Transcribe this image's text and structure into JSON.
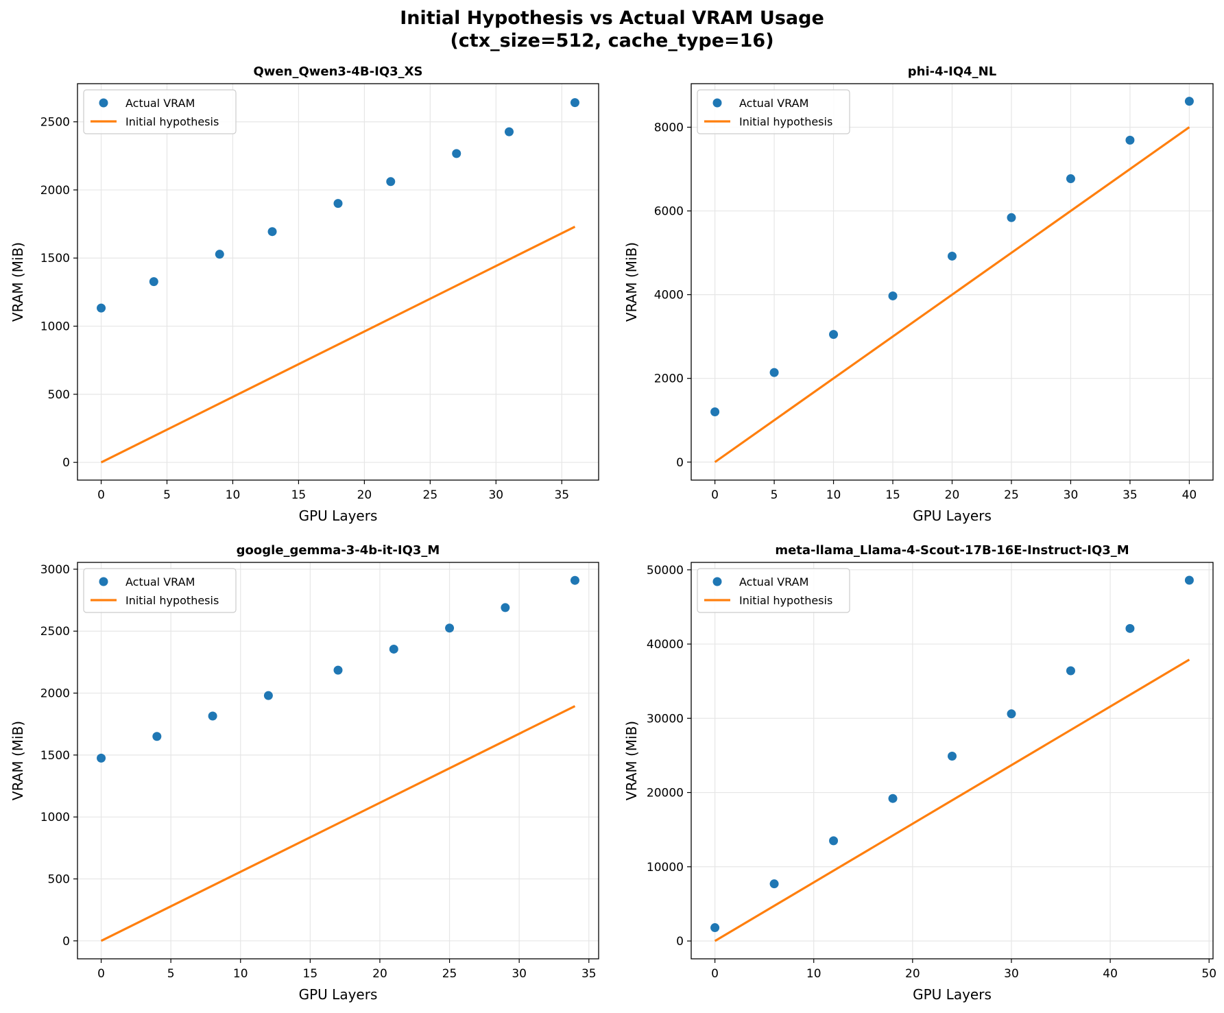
{
  "figure": {
    "title_line1": "Initial Hypothesis vs Actual VRAM Usage",
    "title_line2": "(ctx_size=512, cache_type=16)"
  },
  "colors": {
    "actual": "#1f77b4",
    "hypothesis": "#ff7f0e",
    "grid": "#e6e6e6",
    "axes": "#000000"
  },
  "chart_data": [
    {
      "type": "scatter",
      "title": "Qwen_Qwen3-4B-IQ3_XS",
      "xlabel": "GPU Layers",
      "ylabel": "VRAM (MiB)",
      "xlim": [
        -1.8,
        37.8
      ],
      "ylim": [
        -130,
        2780
      ],
      "xticks": [
        0,
        5,
        10,
        15,
        20,
        25,
        30,
        35
      ],
      "yticks": [
        0,
        500,
        1000,
        1500,
        2000,
        2500
      ],
      "grid": true,
      "legend": "upper-left",
      "series": [
        {
          "name": "Actual VRAM",
          "kind": "scatter",
          "x": [
            0,
            4,
            9,
            13,
            18,
            22,
            27,
            31,
            36
          ],
          "y": [
            1133,
            1327,
            1528,
            1694,
            1901,
            2061,
            2267,
            2427,
            2641
          ]
        },
        {
          "name": "Initial hypothesis",
          "kind": "line",
          "x": [
            0,
            36
          ],
          "y": [
            0,
            1730
          ]
        }
      ]
    },
    {
      "type": "scatter",
      "title": "phi-4-IQ4_NL",
      "xlabel": "GPU Layers",
      "ylabel": "VRAM (MiB)",
      "xlim": [
        -2,
        42
      ],
      "ylim": [
        -430,
        9040
      ],
      "xticks": [
        0,
        5,
        10,
        15,
        20,
        25,
        30,
        35,
        40
      ],
      "yticks": [
        0,
        2000,
        4000,
        6000,
        8000
      ],
      "grid": true,
      "legend": "upper-left",
      "series": [
        {
          "name": "Actual VRAM",
          "kind": "scatter",
          "x": [
            0,
            5,
            10,
            15,
            20,
            25,
            30,
            35,
            40
          ],
          "y": [
            1200,
            2140,
            3050,
            3970,
            4920,
            5840,
            6770,
            7690,
            8620
          ]
        },
        {
          "name": "Initial hypothesis",
          "kind": "line",
          "x": [
            0,
            40
          ],
          "y": [
            0,
            8000
          ]
        }
      ]
    },
    {
      "type": "scatter",
      "title": "google_gemma-3-4b-it-IQ3_M",
      "xlabel": "GPU Layers",
      "ylabel": "VRAM (MiB)",
      "xlim": [
        -1.7,
        35.7
      ],
      "ylim": [
        -145,
        3055
      ],
      "xticks": [
        0,
        5,
        10,
        15,
        20,
        25,
        30,
        35
      ],
      "yticks": [
        0,
        500,
        1000,
        1500,
        2000,
        2500,
        3000
      ],
      "grid": true,
      "legend": "upper-left",
      "series": [
        {
          "name": "Actual VRAM",
          "kind": "scatter",
          "x": [
            0,
            4,
            8,
            12,
            17,
            21,
            25,
            29,
            34
          ],
          "y": [
            1475,
            1650,
            1815,
            1980,
            2185,
            2355,
            2525,
            2690,
            2910
          ]
        },
        {
          "name": "Initial hypothesis",
          "kind": "line",
          "x": [
            0,
            34
          ],
          "y": [
            0,
            1895
          ]
        }
      ]
    },
    {
      "type": "scatter",
      "title": "meta-llama_Llama-4-Scout-17B-16E-Instruct-IQ3_M",
      "xlabel": "GPU Layers",
      "ylabel": "VRAM (MiB)",
      "xlim": [
        -2.4,
        50.4
      ],
      "ylim": [
        -2400,
        51000
      ],
      "xticks": [
        0,
        10,
        20,
        30,
        40,
        50
      ],
      "yticks": [
        0,
        10000,
        20000,
        30000,
        40000,
        50000
      ],
      "grid": true,
      "legend": "upper-left",
      "series": [
        {
          "name": "Actual VRAM",
          "kind": "scatter",
          "x": [
            0,
            6,
            12,
            18,
            24,
            30,
            36,
            42,
            48
          ],
          "y": [
            1800,
            7700,
            13500,
            19200,
            24900,
            30600,
            36400,
            42100,
            48600
          ]
        },
        {
          "name": "Initial hypothesis",
          "kind": "line",
          "x": [
            0,
            48
          ],
          "y": [
            0,
            37900
          ]
        }
      ]
    }
  ]
}
